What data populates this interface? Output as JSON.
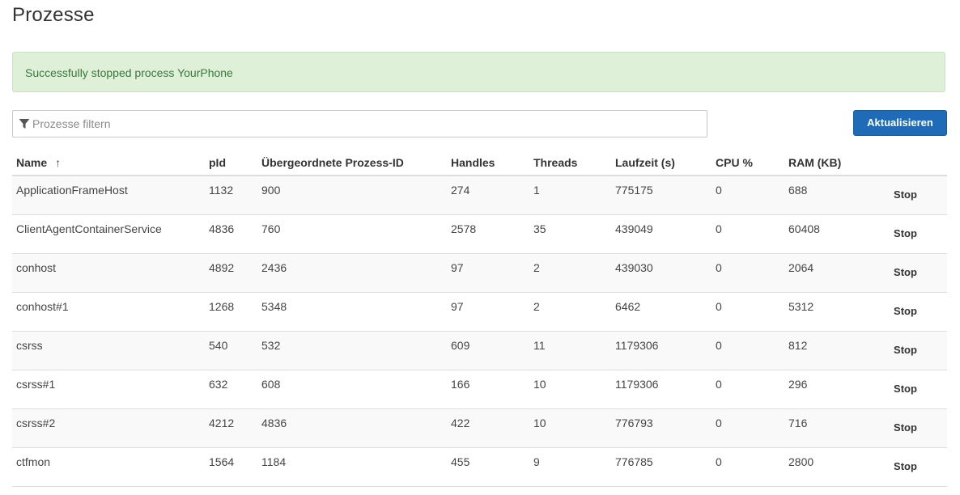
{
  "page": {
    "title": "Prozesse"
  },
  "alert": {
    "message": "Successfully stopped process YourPhone",
    "color": "#3c763d",
    "background": "#dff0d8"
  },
  "filter": {
    "placeholder": "Prozesse filtern",
    "value": "",
    "icon": "filter-icon"
  },
  "toolbar": {
    "refresh_label": "Aktualisieren",
    "accent_color": "#1f6bb8"
  },
  "table": {
    "sort_indicator": "↑",
    "columns": {
      "name": "Name",
      "pid": "pId",
      "ppid": "Übergeordnete Prozess-ID",
      "handles": "Handles",
      "threads": "Threads",
      "runtime": "Laufzeit (s)",
      "cpu": "CPU %",
      "ram": "RAM (KB)"
    },
    "rows": [
      {
        "name": "ApplicationFrameHost",
        "pid": "1132",
        "ppid": "900",
        "handles": "274",
        "threads": "1",
        "runtime": "775175",
        "cpu": "0",
        "ram": "688",
        "action": "Stop"
      },
      {
        "name": "ClientAgentContainerService",
        "pid": "4836",
        "ppid": "760",
        "handles": "2578",
        "threads": "35",
        "runtime": "439049",
        "cpu": "0",
        "ram": "60408",
        "action": "Stop"
      },
      {
        "name": "conhost",
        "pid": "4892",
        "ppid": "2436",
        "handles": "97",
        "threads": "2",
        "runtime": "439030",
        "cpu": "0",
        "ram": "2064",
        "action": "Stop"
      },
      {
        "name": "conhost#1",
        "pid": "1268",
        "ppid": "5348",
        "handles": "97",
        "threads": "2",
        "runtime": "6462",
        "cpu": "0",
        "ram": "5312",
        "action": "Stop"
      },
      {
        "name": "csrss",
        "pid": "540",
        "ppid": "532",
        "handles": "609",
        "threads": "11",
        "runtime": "1179306",
        "cpu": "0",
        "ram": "812",
        "action": "Stop"
      },
      {
        "name": "csrss#1",
        "pid": "632",
        "ppid": "608",
        "handles": "166",
        "threads": "10",
        "runtime": "1179306",
        "cpu": "0",
        "ram": "296",
        "action": "Stop"
      },
      {
        "name": "csrss#2",
        "pid": "4212",
        "ppid": "4836",
        "handles": "422",
        "threads": "10",
        "runtime": "776793",
        "cpu": "0",
        "ram": "716",
        "action": "Stop"
      },
      {
        "name": "ctfmon",
        "pid": "1564",
        "ppid": "1184",
        "handles": "455",
        "threads": "9",
        "runtime": "776785",
        "cpu": "0",
        "ram": "2800",
        "action": "Stop"
      }
    ]
  }
}
